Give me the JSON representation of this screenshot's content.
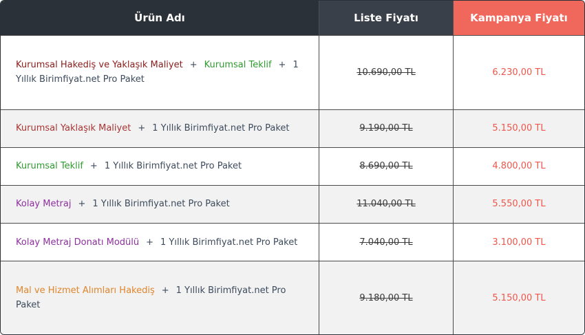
{
  "table": {
    "headers": [
      "Ürün Adı",
      "Liste Fiyatı",
      "Kampanya Fiyatı"
    ],
    "rows": [
      {
        "product": [
          {
            "text": "Kurumsal Hakediş ve Yaklaşık Maliyet",
            "color": "#8b1c1c"
          },
          {
            "text": "+",
            "color": "#3d4b5c"
          },
          {
            "text": "Kurumsal Teklif",
            "color": "#2f9a2f"
          },
          {
            "text": "+",
            "color": "#3d4b5c"
          },
          {
            "text": "1 Yıllık Birimfiyat.net Pro Paket",
            "color": "#3d4b5c"
          }
        ],
        "list_price": "10.690,00 TL",
        "campaign_price": "6.230,00 TL"
      },
      {
        "product": [
          {
            "text": "Kurumsal Yaklaşık Maliyet",
            "color": "#a83434"
          },
          {
            "text": "+",
            "color": "#3d4b5c"
          },
          {
            "text": "1 Yıllık Birimfiyat.net Pro Paket",
            "color": "#3d4b5c"
          }
        ],
        "list_price": "9.190,00 TL",
        "campaign_price": "5.150,00 TL"
      },
      {
        "product": [
          {
            "text": "Kurumsal Teklif",
            "color": "#2f9a2f"
          },
          {
            "text": "+",
            "color": "#3d4b5c"
          },
          {
            "text": "1 Yıllık Birimfiyat.net Pro Paket",
            "color": "#3d4b5c"
          }
        ],
        "list_price": "8.690,00 TL",
        "campaign_price": "4.800,00 TL"
      },
      {
        "product": [
          {
            "text": "Kolay Metraj",
            "color": "#8e2fa0"
          },
          {
            "text": "+",
            "color": "#3d4b5c"
          },
          {
            "text": "1 Yıllık Birimfiyat.net Pro Paket",
            "color": "#3d4b5c"
          }
        ],
        "list_price": "11.040,00 TL",
        "campaign_price": "5.550,00 TL"
      },
      {
        "product": [
          {
            "text": "Kolay Metraj Donatı Modülü",
            "color": "#8e2fa0"
          },
          {
            "text": "+",
            "color": "#3d4b5c"
          },
          {
            "text": "1 Yıllık Birimfiyat.net Pro Paket",
            "color": "#3d4b5c"
          }
        ],
        "list_price": "7.040,00 TL",
        "campaign_price": "3.100,00 TL"
      },
      {
        "product": [
          {
            "text": "Mal ve Hizmet Alımları Hakediş",
            "color": "#e0852c"
          },
          {
            "text": "+",
            "color": "#3d4b5c"
          },
          {
            "text": "1 Yıllık Birimfiyat.net Pro Paket",
            "color": "#3d4b5c"
          }
        ],
        "list_price": "9.180,00 TL",
        "campaign_price": "5.150,00 TL"
      }
    ]
  }
}
